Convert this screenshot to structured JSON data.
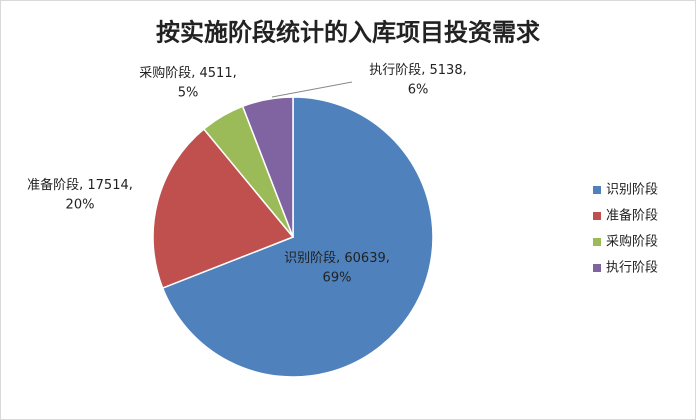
{
  "chart_data": {
    "type": "pie",
    "title": "按实施阶段统计的入库项目投资需求",
    "categories": [
      "识别阶段",
      "准备阶段",
      "采购阶段",
      "执行阶段"
    ],
    "values": [
      60639,
      17514,
      4511,
      5138
    ],
    "percent_labels": [
      "69%",
      "20%",
      "5%",
      "6%"
    ],
    "colors": [
      "#4f81bd",
      "#c0504d",
      "#9bbb59",
      "#8064a2"
    ],
    "legend": "right"
  }
}
